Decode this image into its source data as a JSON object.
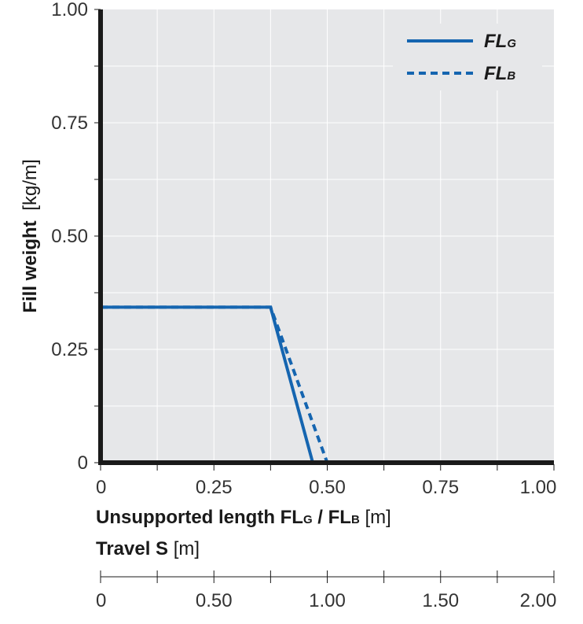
{
  "chart_data": {
    "type": "line",
    "y_axis": {
      "title_bold": "Fill weight",
      "title_unit": "[kg/m]",
      "ylim": [
        0,
        1.0
      ],
      "ticks": [
        {
          "value": 0,
          "label": "0"
        },
        {
          "value": 0.25,
          "label": "0.25"
        },
        {
          "value": 0.5,
          "label": "0.50"
        },
        {
          "value": 0.75,
          "label": "0.75"
        },
        {
          "value": 1.0,
          "label": "1.00"
        }
      ]
    },
    "x_axis": {
      "title_bold_main": "Unsupported length FL",
      "title_sub_1": "G",
      "title_sep": " / FL",
      "title_sub_2": "B",
      "title_unit": " [m]",
      "xlim": [
        0,
        1.0
      ],
      "ticks": [
        {
          "value": 0,
          "label": "0"
        },
        {
          "value": 0.25,
          "label": "0.25"
        },
        {
          "value": 0.5,
          "label": "0.50"
        },
        {
          "value": 0.75,
          "label": "0.75"
        },
        {
          "value": 1.0,
          "label": "1.00"
        }
      ]
    },
    "secondary_x_axis": {
      "title_bold": "Travel S",
      "title_unit": " [m]",
      "xlim": [
        0,
        2.0
      ],
      "ticks": [
        {
          "value": 0,
          "label": "0"
        },
        {
          "value": 0.5,
          "label": "0.50"
        },
        {
          "value": 1.0,
          "label": "1.00"
        },
        {
          "value": 1.5,
          "label": "1.50"
        },
        {
          "value": 2.0,
          "label": "2.00"
        }
      ]
    },
    "grid": true,
    "legend_position": "top-right",
    "series": [
      {
        "name": "FL",
        "name_sub": "G",
        "style": "solid",
        "color": "#1565b0",
        "points": [
          [
            0,
            0.343
          ],
          [
            0.375,
            0.343
          ],
          [
            0.468,
            0
          ]
        ]
      },
      {
        "name": "FL",
        "name_sub": "B",
        "style": "dashed",
        "color": "#1565b0",
        "points": [
          [
            0,
            0.343
          ],
          [
            0.375,
            0.343
          ],
          [
            0.5,
            0
          ]
        ]
      }
    ],
    "colors": {
      "plot_background": "#e6e7e9",
      "grid": "#ffffff",
      "axis": "#1a1a1a"
    }
  }
}
